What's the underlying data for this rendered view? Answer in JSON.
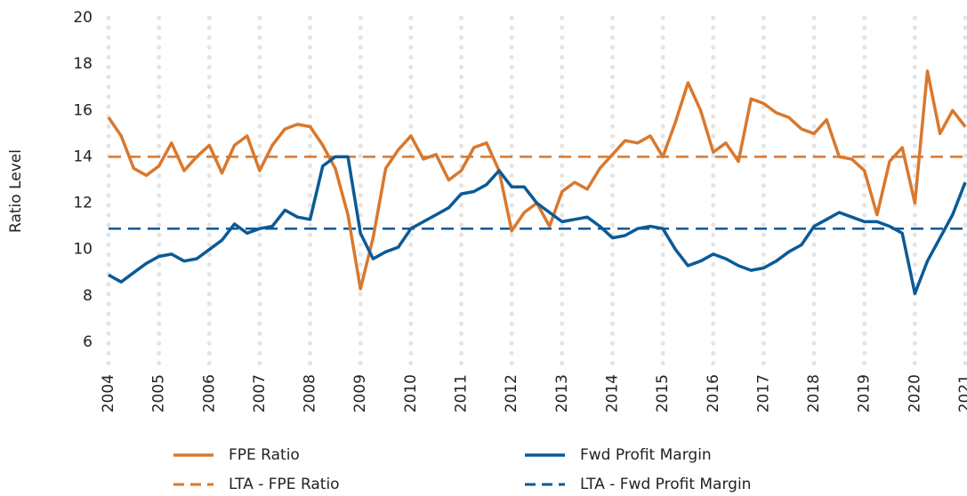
{
  "chart_data": {
    "type": "line",
    "y_label": "Ratio Level",
    "x": [
      2004,
      2004.25,
      2004.5,
      2004.75,
      2005,
      2005.25,
      2005.5,
      2005.75,
      2006,
      2006.25,
      2006.5,
      2006.75,
      2007,
      2007.25,
      2007.5,
      2007.75,
      2008,
      2008.25,
      2008.5,
      2008.75,
      2009,
      2009.25,
      2009.5,
      2009.75,
      2010,
      2010.25,
      2010.5,
      2010.75,
      2011,
      2011.25,
      2011.5,
      2011.75,
      2012,
      2012.25,
      2012.5,
      2012.75,
      2013,
      2013.25,
      2013.5,
      2013.75,
      2014,
      2014.25,
      2014.5,
      2014.75,
      2015,
      2015.25,
      2015.5,
      2015.75,
      2016,
      2016.25,
      2016.5,
      2016.75,
      2017,
      2017.25,
      2017.5,
      2017.75,
      2018,
      2018.25,
      2018.5,
      2018.75,
      2019,
      2019.25,
      2019.5,
      2019.75,
      2020,
      2020.25,
      2020.5,
      2020.75,
      2021
    ],
    "series": [
      {
        "name": "FPE Ratio",
        "color": "#d9782d",
        "values": [
          15.7,
          14.9,
          13.5,
          13.2,
          13.6,
          14.6,
          13.4,
          14.0,
          14.5,
          13.3,
          14.5,
          14.9,
          13.4,
          14.5,
          15.2,
          15.4,
          15.3,
          14.5,
          13.5,
          11.5,
          8.3,
          10.5,
          13.5,
          14.3,
          14.9,
          13.9,
          14.1,
          13.0,
          13.4,
          14.4,
          14.6,
          13.4,
          10.8,
          11.6,
          12.0,
          11.0,
          12.5,
          12.9,
          12.6,
          13.5,
          14.1,
          14.7,
          14.6,
          14.9,
          14.0,
          15.5,
          17.2,
          16.0,
          14.2,
          14.6,
          13.8,
          16.5,
          16.3,
          15.9,
          15.7,
          15.2,
          15.0,
          15.6,
          14.0,
          13.9,
          13.4,
          11.5,
          13.8,
          14.4,
          12.0,
          17.7,
          15.0,
          16.0,
          15.3
        ]
      },
      {
        "name": "Fwd Profit Margin",
        "color": "#0b5a96",
        "values": [
          8.9,
          8.6,
          9.0,
          9.4,
          9.7,
          9.8,
          9.5,
          9.6,
          10.0,
          10.4,
          11.1,
          10.7,
          10.9,
          11.0,
          11.7,
          11.4,
          11.3,
          13.6,
          14.0,
          14.0,
          10.7,
          9.6,
          9.9,
          10.1,
          10.9,
          11.2,
          11.5,
          11.8,
          12.4,
          12.5,
          12.8,
          13.4,
          12.7,
          12.7,
          12.0,
          11.6,
          11.2,
          11.3,
          11.4,
          11.0,
          10.5,
          10.6,
          10.9,
          11.0,
          10.9,
          10.0,
          9.3,
          9.5,
          9.8,
          9.6,
          9.3,
          9.1,
          9.2,
          9.5,
          9.9,
          10.2,
          11.0,
          11.3,
          11.6,
          11.4,
          11.2,
          11.2,
          11.0,
          10.7,
          8.1,
          9.5,
          10.5,
          11.5,
          12.9
        ]
      }
    ],
    "reference_lines": [
      {
        "name": "LTA - FPE Ratio",
        "value": 14,
        "color": "#d9782d"
      },
      {
        "name": "LTA - Fwd Profit Margin",
        "value": 10.9,
        "color": "#0b5a96"
      }
    ],
    "xlim": [
      2004,
      2021
    ],
    "xticks": [
      2004,
      2005,
      2006,
      2007,
      2008,
      2009,
      2010,
      2011,
      2012,
      2013,
      2014,
      2015,
      2016,
      2017,
      2018,
      2019,
      2020,
      2021
    ],
    "ylim": [
      5,
      20
    ],
    "yticks": [
      6,
      8,
      10,
      12,
      14,
      16,
      18,
      20
    ],
    "grid": true
  }
}
